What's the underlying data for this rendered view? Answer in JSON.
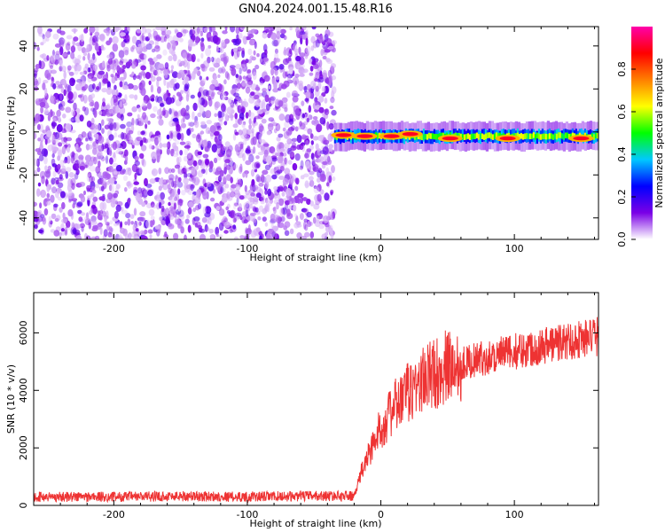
{
  "figure": {
    "title": "GN04.2024.001.15.48.R16"
  },
  "chart_data": [
    {
      "type": "heatmap",
      "panel": "top",
      "xlabel": "Height of straight line (km)",
      "ylabel": "Frequency (Hz)",
      "xlim": [
        -260,
        163
      ],
      "ylim": [
        -50,
        49
      ],
      "x_ticks": [
        -200,
        -100,
        0,
        100
      ],
      "x_tick_labels": [
        "-200",
        "-100",
        "0",
        "100"
      ],
      "y_ticks": [
        -40,
        -20,
        0,
        20,
        40
      ],
      "y_tick_labels": [
        "-40",
        "-20",
        "0",
        "20",
        "40"
      ],
      "noise_region_x": [
        -260,
        -35
      ],
      "signal_band": {
        "x_start": -35,
        "x_end": 163,
        "center_frequency_hz": -2,
        "half_width_hz": 3,
        "high_amplitude_points": [
          {
            "x": -28,
            "y": -1.5
          },
          {
            "x": -12,
            "y": -2
          },
          {
            "x": 8,
            "y": -2
          },
          {
            "x": 22,
            "y": -1
          },
          {
            "x": 52,
            "y": -3
          },
          {
            "x": 95,
            "y": -3
          },
          {
            "x": 150,
            "y": -3
          }
        ]
      },
      "colorbar": {
        "label": "Normalized spectral amplitude",
        "range": [
          0,
          1
        ],
        "ticks": [
          0.0,
          0.2,
          0.4,
          0.6,
          0.8
        ],
        "tick_labels": [
          "0.0",
          "0.2",
          "0.4",
          "0.6",
          "0.8"
        ],
        "colormap": [
          "#ffffff",
          "#7a00e6",
          "#0000ff",
          "#00c8ff",
          "#00ff00",
          "#ffff00",
          "#ff7f00",
          "#ff0000",
          "#ff00aa"
        ]
      },
      "grid": false
    },
    {
      "type": "line",
      "panel": "bottom",
      "xlabel": "Height of straight line (km)",
      "ylabel": "SNR (10 * v/v)",
      "xlim": [
        -260,
        163
      ],
      "ylim": [
        0,
        7400
      ],
      "x_ticks": [
        -200,
        -100,
        0,
        100
      ],
      "x_tick_labels": [
        "-200",
        "-100",
        "0",
        "100"
      ],
      "y_ticks": [
        0,
        2000,
        4000,
        6000
      ],
      "y_tick_labels": [
        "0",
        "2000",
        "4000",
        "6000"
      ],
      "series": [
        {
          "color": "#ee3333",
          "x": [
            -260,
            -200,
            -150,
            -100,
            -50,
            -20,
            -18,
            -15,
            -10,
            0,
            10,
            20,
            30,
            40,
            50,
            60,
            70,
            80,
            90,
            100,
            110,
            120,
            130,
            140,
            150,
            163
          ],
          "y": [
            300,
            300,
            320,
            300,
            330,
            330,
            600,
            1100,
            1700,
            2700,
            3400,
            3900,
            4300,
            4600,
            4800,
            4950,
            5050,
            5150,
            5250,
            5350,
            5450,
            5550,
            5650,
            5700,
            5800,
            5850
          ]
        }
      ],
      "grid": false
    }
  ]
}
